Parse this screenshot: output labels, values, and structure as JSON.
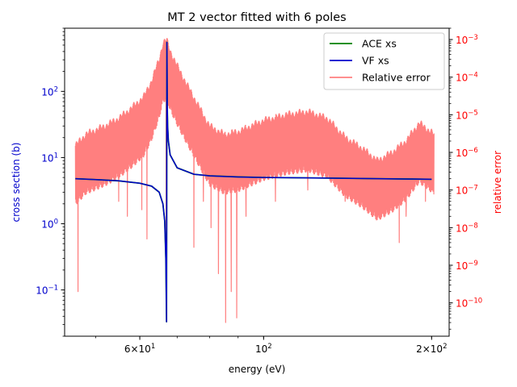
{
  "chart_data": {
    "type": "line",
    "title": "MT 2 vector fitted with 6 poles",
    "xlabel": "energy (eV)",
    "ylabel_left": "cross section (b)",
    "ylabel_right": "relative error",
    "x_scale": "log",
    "y_scale_left": "log",
    "y_scale_right": "log",
    "xlim": [
      44.0,
      215.0
    ],
    "ylim_left": [
      0.02,
      900
    ],
    "ylim_right": [
      1.3e-11,
      0.002
    ],
    "x_ticks": [
      {
        "value": 60,
        "mant": "6",
        "exp": "1"
      },
      {
        "value": 100,
        "mant": "",
        "exp": "2"
      },
      {
        "value": 200,
        "mant": "2",
        "exp": "2"
      }
    ],
    "y_ticks_left": [
      {
        "value": 0.1,
        "exp": "−1"
      },
      {
        "value": 1,
        "exp": "0"
      },
      {
        "value": 10,
        "exp": "1"
      },
      {
        "value": 100,
        "exp": "2"
      }
    ],
    "y_ticks_right": [
      {
        "value": 1e-10,
        "exp": "−10"
      },
      {
        "value": 1e-09,
        "exp": "−9"
      },
      {
        "value": 1e-08,
        "exp": "−8"
      },
      {
        "value": 1e-07,
        "exp": "−7"
      },
      {
        "value": 1e-06,
        "exp": "−6"
      },
      {
        "value": 1e-05,
        "exp": "−5"
      },
      {
        "value": 0.0001,
        "exp": "−4"
      },
      {
        "value": 0.001,
        "exp": "−3"
      }
    ],
    "tick_base": "10",
    "legend_position": "upper right",
    "series": [
      {
        "name": "ACE xs",
        "axis": "left",
        "color": "#008000",
        "x": [
          46.0,
          50.0,
          55.0,
          60.0,
          63.0,
          65.0,
          66.0,
          66.5,
          66.8,
          67.0,
          67.1,
          67.2,
          67.3,
          67.5,
          68.0,
          70.0,
          75.0,
          80.0,
          90.0,
          100.0,
          130.0,
          160.0,
          200.0
        ],
        "y": [
          4.8,
          4.65,
          4.45,
          4.1,
          3.7,
          3.0,
          2.0,
          1.1,
          0.3,
          0.033,
          550,
          60,
          30,
          18,
          11,
          7.0,
          5.6,
          5.3,
          5.1,
          5.0,
          4.9,
          4.8,
          4.7
        ]
      },
      {
        "name": "VF xs",
        "axis": "left",
        "color": "#0000cc",
        "x": [
          46.0,
          50.0,
          55.0,
          60.0,
          63.0,
          65.0,
          66.0,
          66.5,
          66.8,
          67.0,
          67.1,
          67.2,
          67.3,
          67.5,
          68.0,
          70.0,
          75.0,
          80.0,
          90.0,
          100.0,
          130.0,
          160.0,
          200.0
        ],
        "y": [
          4.8,
          4.65,
          4.45,
          4.1,
          3.7,
          3.0,
          2.0,
          1.1,
          0.3,
          0.033,
          550,
          60,
          30,
          18,
          11,
          7.0,
          5.6,
          5.3,
          5.1,
          5.0,
          4.9,
          4.8,
          4.7
        ]
      },
      {
        "name": "Relative error",
        "axis": "right",
        "color": "#ff7f7f",
        "x_range": [
          46.0,
          202.0
        ],
        "envelope_x": [
          46.0,
          48.0,
          52.0,
          55.0,
          58.0,
          61.0,
          63.0,
          65.0,
          66.0,
          67.0,
          68.0,
          70.0,
          73.0,
          76.0,
          80.0,
          85.0,
          90.0,
          95.0,
          100.0,
          110.0,
          120.0,
          130.0,
          140.0,
          150.0,
          160.0,
          170.0,
          180.0,
          190.0,
          202.0
        ],
        "envelope_y": [
          1.5e-06,
          3e-06,
          5e-06,
          8e-06,
          1.5e-05,
          3e-05,
          8e-05,
          0.0003,
          0.0008,
          0.001,
          0.0005,
          0.0002,
          6e-05,
          2e-05,
          5e-06,
          3e-06,
          3.5e-06,
          5e-06,
          7e-06,
          1e-05,
          1.2e-05,
          8e-06,
          2.5e-06,
          1.3e-06,
          6e-07,
          1e-06,
          2e-06,
          6e-06,
          3e-06
        ],
        "dips": [
          {
            "x": 46.5,
            "y": 2e-10
          },
          {
            "x": 55.0,
            "y": 5e-08
          },
          {
            "x": 57.0,
            "y": 2e-08
          },
          {
            "x": 60.5,
            "y": 3e-08
          },
          {
            "x": 61.8,
            "y": 5e-09
          },
          {
            "x": 66.9,
            "y": 1e-09
          },
          {
            "x": 75.0,
            "y": 3e-09
          },
          {
            "x": 78.0,
            "y": 5e-08
          },
          {
            "x": 80.5,
            "y": 1e-08
          },
          {
            "x": 83.0,
            "y": 6e-10
          },
          {
            "x": 85.5,
            "y": 3e-11
          },
          {
            "x": 87.5,
            "y": 2e-10
          },
          {
            "x": 89.5,
            "y": 4e-11
          },
          {
            "x": 93.0,
            "y": 2e-08
          },
          {
            "x": 105.0,
            "y": 5e-08
          },
          {
            "x": 120.0,
            "y": 1e-07
          },
          {
            "x": 140.0,
            "y": 5e-08
          },
          {
            "x": 160.0,
            "y": 5e-08
          },
          {
            "x": 175.0,
            "y": 4e-09
          },
          {
            "x": 180.0,
            "y": 2e-08
          },
          {
            "x": 195.0,
            "y": 5e-08
          },
          {
            "x": 201.0,
            "y": 1e-07
          }
        ]
      }
    ]
  }
}
